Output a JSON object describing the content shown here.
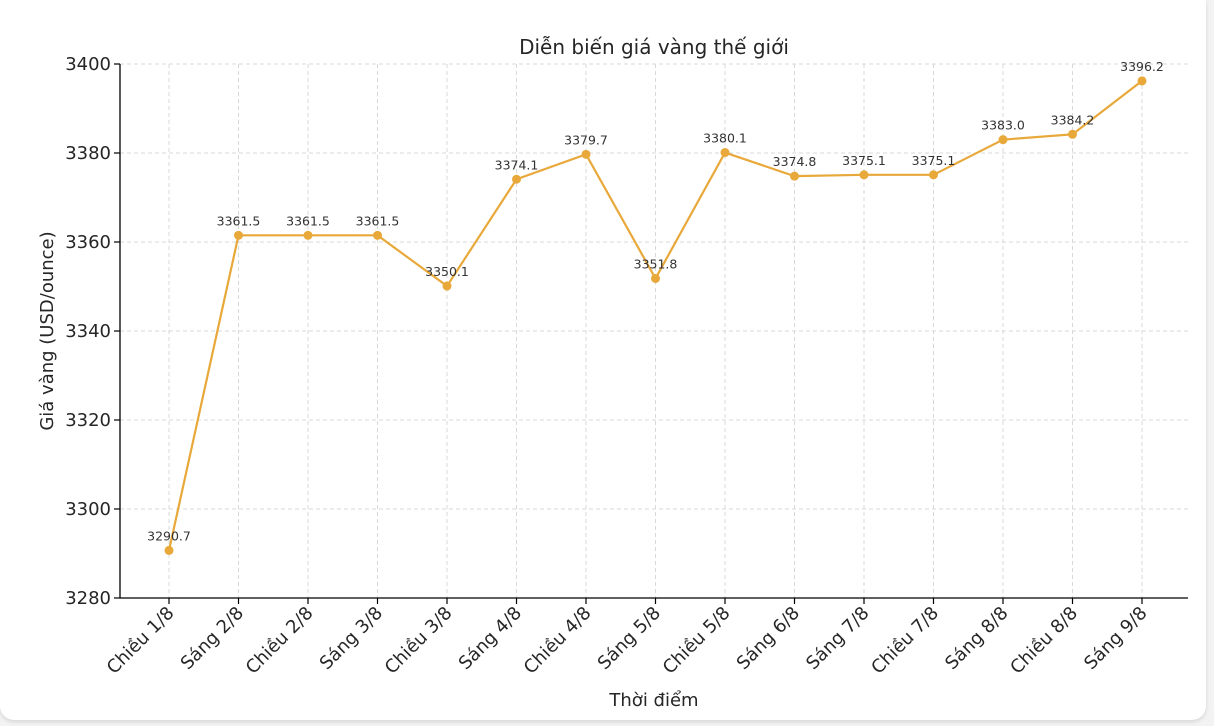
{
  "chart_data": {
    "type": "line",
    "title": "Diễn biến giá vàng thế giới",
    "xlabel": "Thời điểm",
    "ylabel": "Giá vàng (USD/ounce)",
    "ylim": [
      3280,
      3400
    ],
    "yticks": [
      3280,
      3300,
      3320,
      3340,
      3360,
      3380,
      3400
    ],
    "grid": true,
    "categories": [
      "Chiều 1/8",
      "Sáng 2/8",
      "Chiều 2/8",
      "Sáng 3/8",
      "Chiều 3/8",
      "Sáng 4/8",
      "Chiều 4/8",
      "Sáng 5/8",
      "Chiều 5/8",
      "Sáng 6/8",
      "Sáng 7/8",
      "Chiều 7/8",
      "Sáng 8/8",
      "Chiều 8/8",
      "Sáng 9/8"
    ],
    "values": [
      3290.7,
      3361.5,
      3361.5,
      3361.5,
      3350.1,
      3374.1,
      3379.7,
      3351.8,
      3380.1,
      3374.8,
      3375.1,
      3375.1,
      3383.0,
      3384.2,
      3396.2
    ],
    "data_labels": [
      "3290.7",
      "3361.5",
      "3361.5",
      "3361.5",
      "3350.1",
      "3374.1",
      "3379.7",
      "3351.8",
      "3380.1",
      "3374.8",
      "3375.1",
      "3375.1",
      "3383.0",
      "3384.2",
      "3396.2"
    ],
    "colors": {
      "line": "#E8A83A",
      "grid": "#d9d9d9",
      "axis": "#000000"
    }
  }
}
